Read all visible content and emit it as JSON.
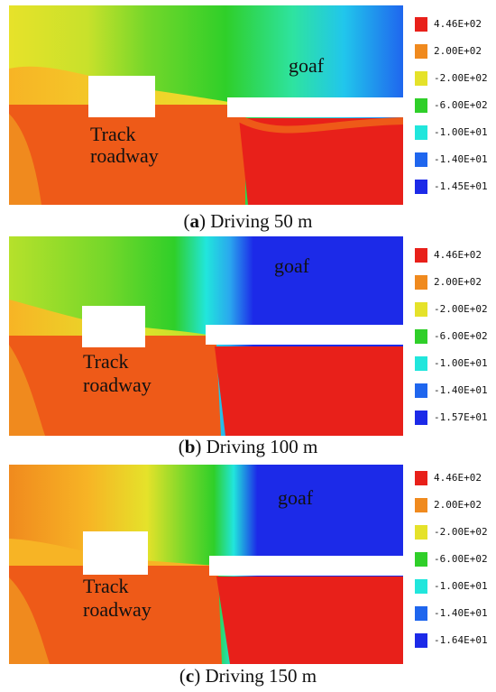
{
  "colors": {
    "red": "#e8201a",
    "orange_red": "#ee5a18",
    "orange": "#f08a1e",
    "orange_yellow": "#f7b425",
    "yellow": "#e5e22a",
    "yellow_green": "#b6e12b",
    "green_light": "#74d72a",
    "green": "#2fcf29",
    "cyan": "#21e6dc",
    "teal_blue": "#2aa8ee",
    "blue": "#1f66ee",
    "deep_blue": "#1c2ae8"
  },
  "legend_labels_common": [
    "4.46E+02",
    "2.00E+02",
    "-2.00E+02",
    "-6.00E+02",
    "-1.00E+01",
    "-1.40E+01"
  ],
  "panels": [
    {
      "id": "a",
      "goaf_label": "goaf",
      "track_label_1": "Track",
      "track_label_2": "roadway",
      "legend_min": "-1.45E+01",
      "caption_letter": "a",
      "caption_text": " Driving 50 m"
    },
    {
      "id": "b",
      "goaf_label": "goaf",
      "track_label_1": "Track",
      "track_label_2": "roadway",
      "legend_min": "-1.57E+01",
      "caption_letter": "b",
      "caption_text": " Driving 100 m"
    },
    {
      "id": "c",
      "goaf_label": "goaf",
      "track_label_1": "Track",
      "track_label_2": "roadway",
      "legend_min": "-1.64E+01",
      "caption_letter": "c",
      "caption_text": " Driving 150 m"
    }
  ]
}
